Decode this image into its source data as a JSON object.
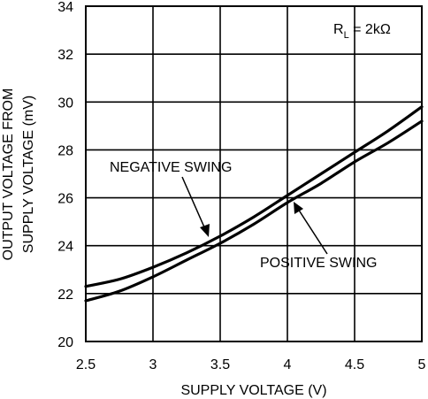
{
  "chart_data": {
    "type": "line",
    "title": "",
    "xlabel": "SUPPLY VOLTAGE (V)",
    "ylabel_lines": [
      "OUTPUT VOLTAGE FROM",
      "SUPPLY VOLTAGE (mV)"
    ],
    "xlim": [
      2.5,
      5
    ],
    "ylim": [
      20,
      34
    ],
    "x_ticks": [
      "2.5",
      "3",
      "3.5",
      "4",
      "4.5",
      "5"
    ],
    "y_ticks": [
      "20",
      "22",
      "24",
      "26",
      "28",
      "30",
      "32",
      "34"
    ],
    "grid": true,
    "annotation": {
      "text_main": "R",
      "text_sub": "L",
      "text_rest": " = 2kΩ",
      "placement": "top-right"
    },
    "series": [
      {
        "name": "NEGATIVE SWING",
        "x": [
          2.5,
          2.75,
          3.0,
          3.25,
          3.5,
          3.75,
          4.0,
          4.25,
          4.5,
          4.75,
          5.0
        ],
        "y": [
          22.3,
          22.6,
          23.1,
          23.7,
          24.4,
          25.2,
          26.1,
          27.0,
          27.9,
          28.8,
          29.8
        ]
      },
      {
        "name": "POSITIVE SWING",
        "x": [
          2.5,
          2.75,
          3.0,
          3.25,
          3.5,
          3.75,
          4.0,
          4.25,
          4.5,
          4.75,
          5.0
        ],
        "y": [
          21.7,
          22.1,
          22.7,
          23.4,
          24.1,
          24.9,
          25.8,
          26.6,
          27.5,
          28.3,
          29.2
        ]
      }
    ]
  }
}
